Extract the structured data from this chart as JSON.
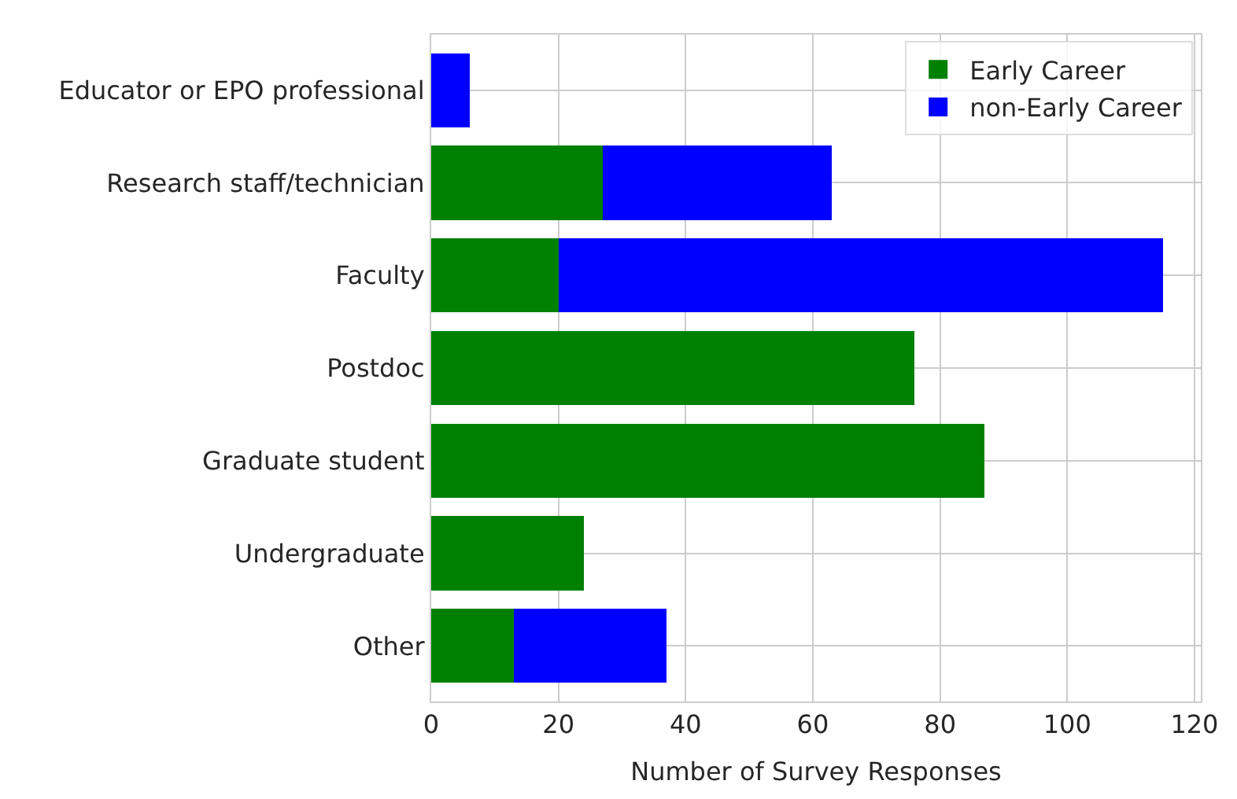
{
  "chart_data": {
    "type": "bar",
    "orientation": "horizontal",
    "stacked": true,
    "xlabel": "Number of Survey Responses",
    "categories": [
      "Educator or EPO professional",
      "Research staff/technician",
      "Faculty",
      "Postdoc",
      "Graduate student",
      "Undergraduate",
      "Other"
    ],
    "series": [
      {
        "name": "Early Career",
        "color": "#008000",
        "values": [
          null,
          27,
          20,
          76,
          87,
          24,
          13
        ]
      },
      {
        "name": "non-Early Career",
        "color": "#0000ff",
        "values": [
          6,
          36,
          95,
          null,
          null,
          null,
          24
        ]
      }
    ],
    "xlim": [
      0,
      121
    ],
    "xticks": [
      0,
      20,
      40,
      60,
      80,
      100,
      120
    ],
    "grid": true,
    "legend": "top right"
  }
}
